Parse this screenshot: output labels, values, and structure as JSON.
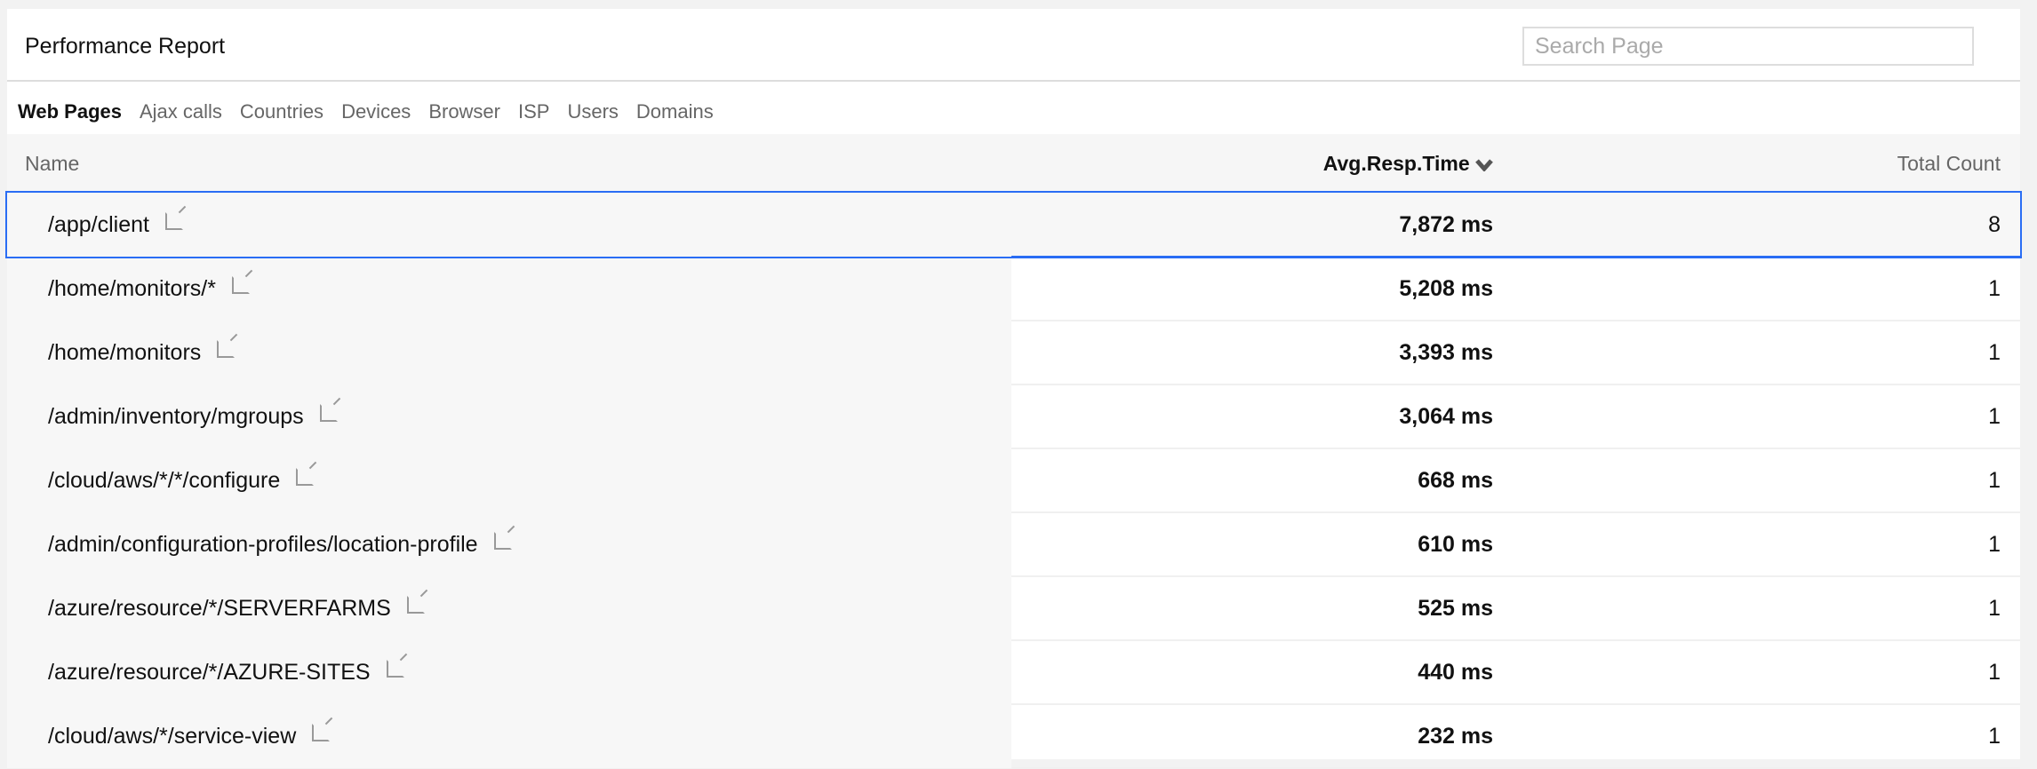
{
  "header": {
    "title": "Performance Report",
    "search_placeholder": "Search Page"
  },
  "tabs": [
    {
      "label": "Web Pages",
      "active": true
    },
    {
      "label": "Ajax calls"
    },
    {
      "label": "Countries"
    },
    {
      "label": "Devices"
    },
    {
      "label": "Browser"
    },
    {
      "label": "ISP"
    },
    {
      "label": "Users"
    },
    {
      "label": "Domains"
    }
  ],
  "table": {
    "columns": {
      "name": "Name",
      "avg": "Avg.Resp.Time",
      "count": "Total Count"
    },
    "sort_icon": "chevron-down-icon",
    "highlight_color": "#2a6df4",
    "rows": [
      {
        "name": "/app/client",
        "avg": "7,872 ms",
        "count": "8",
        "selected": true
      },
      {
        "name": "/home/monitors/*",
        "avg": "5,208 ms",
        "count": "1"
      },
      {
        "name": "/home/monitors",
        "avg": "3,393 ms",
        "count": "1"
      },
      {
        "name": "/admin/inventory/mgroups",
        "avg": "3,064 ms",
        "count": "1"
      },
      {
        "name": "/cloud/aws/*/*/configure",
        "avg": "668 ms",
        "count": "1"
      },
      {
        "name": "/admin/configuration-profiles/location-profile",
        "avg": "610 ms",
        "count": "1"
      },
      {
        "name": "/azure/resource/*/SERVERFARMS",
        "avg": "525 ms",
        "count": "1"
      },
      {
        "name": "/azure/resource/*/AZURE-SITES",
        "avg": "440 ms",
        "count": "1"
      },
      {
        "name": "/cloud/aws/*/service-view",
        "avg": "232 ms",
        "count": "1"
      }
    ]
  }
}
